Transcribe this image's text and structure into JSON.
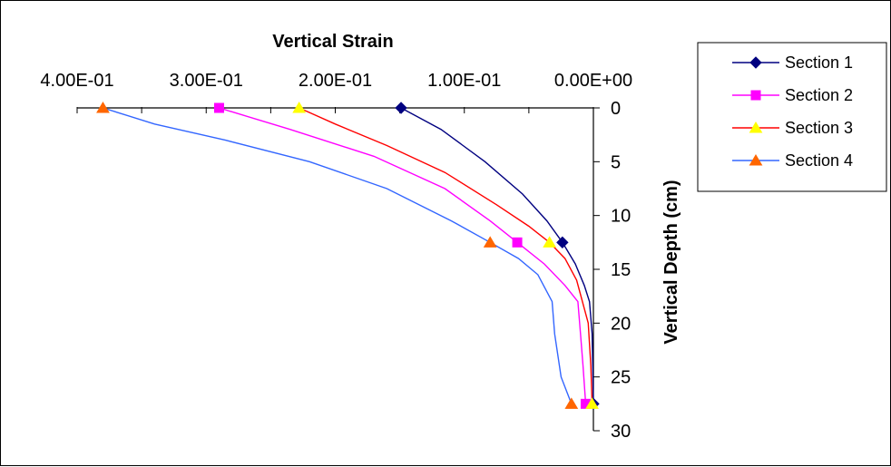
{
  "chart_data": {
    "type": "line",
    "title": "Vertical Strain",
    "xlabel": "",
    "ylabel": "Vertical Depth (cm)",
    "x_axis": {
      "reversed": true,
      "range": [
        0,
        0.4
      ],
      "position": "top",
      "ticks": [
        0.4,
        0.3,
        0.2,
        0.1,
        0.0
      ],
      "tick_labels": [
        "4.00E-01",
        "3.00E-01",
        "2.00E-01",
        "1.00E-01",
        "0.00E+00"
      ]
    },
    "y_axis": {
      "reversed": true,
      "range": [
        0,
        30
      ],
      "position": "right",
      "ticks": [
        0,
        5,
        10,
        15,
        20,
        25,
        30
      ],
      "tick_labels": [
        "0",
        "5",
        "10",
        "15",
        "20",
        "25",
        "30"
      ]
    },
    "grid": false,
    "legend": {
      "placement": "top-right"
    },
    "series": [
      {
        "name": "Section 1",
        "color": "#000080",
        "marker": "diamond",
        "marker_color": "#000080",
        "points": [
          [
            0.149,
            0
          ],
          [
            0.024,
            12.5
          ],
          [
            0.0,
            27.5
          ]
        ],
        "curve": [
          [
            0.149,
            0
          ],
          [
            0.118,
            2
          ],
          [
            0.084,
            5
          ],
          [
            0.055,
            8
          ],
          [
            0.036,
            10.5
          ],
          [
            0.024,
            12.5
          ],
          [
            0.014,
            14.5
          ],
          [
            0.007,
            16.5
          ],
          [
            0.003,
            18
          ],
          [
            0.001,
            21
          ],
          [
            0.0005,
            24
          ],
          [
            0.0,
            27.5
          ]
        ]
      },
      {
        "name": "Section 2",
        "color": "#FF00FF",
        "marker": "square",
        "marker_color": "#FF00FF",
        "points": [
          [
            0.29,
            0
          ],
          [
            0.059,
            12.5
          ],
          [
            0.006,
            27.5
          ]
        ],
        "curve": [
          [
            0.29,
            0
          ],
          [
            0.235,
            2
          ],
          [
            0.17,
            4.5
          ],
          [
            0.115,
            7.5
          ],
          [
            0.08,
            10.5
          ],
          [
            0.059,
            12.5
          ],
          [
            0.038,
            14.5
          ],
          [
            0.022,
            16.5
          ],
          [
            0.012,
            18
          ],
          [
            0.01,
            21
          ],
          [
            0.008,
            24
          ],
          [
            0.006,
            27.5
          ]
        ]
      },
      {
        "name": "Section 3",
        "color": "#FF0000",
        "marker": "triangle",
        "marker_color": "#FFFF00",
        "points": [
          [
            0.228,
            0
          ],
          [
            0.034,
            12.5
          ],
          [
            0.001,
            27.5
          ]
        ],
        "curve": [
          [
            0.228,
            0
          ],
          [
            0.2,
            1.5
          ],
          [
            0.16,
            3.5
          ],
          [
            0.115,
            6
          ],
          [
            0.075,
            9
          ],
          [
            0.05,
            11
          ],
          [
            0.034,
            12.5
          ],
          [
            0.022,
            14
          ],
          [
            0.013,
            16
          ],
          [
            0.004,
            20
          ],
          [
            0.002,
            24
          ],
          [
            0.001,
            27.5
          ]
        ]
      },
      {
        "name": "Section 4",
        "color": "#3366FF",
        "marker": "triangle",
        "marker_color": "#FF6600",
        "points": [
          [
            0.38,
            0
          ],
          [
            0.08,
            12.5
          ],
          [
            0.017,
            27.5
          ]
        ],
        "curve": [
          [
            0.38,
            0
          ],
          [
            0.34,
            1.5
          ],
          [
            0.285,
            3
          ],
          [
            0.22,
            5
          ],
          [
            0.16,
            7.5
          ],
          [
            0.11,
            10.5
          ],
          [
            0.08,
            12.5
          ],
          [
            0.058,
            14
          ],
          [
            0.043,
            15.5
          ],
          [
            0.032,
            18
          ],
          [
            0.03,
            21
          ],
          [
            0.025,
            25
          ],
          [
            0.017,
            27.5
          ]
        ]
      }
    ]
  }
}
